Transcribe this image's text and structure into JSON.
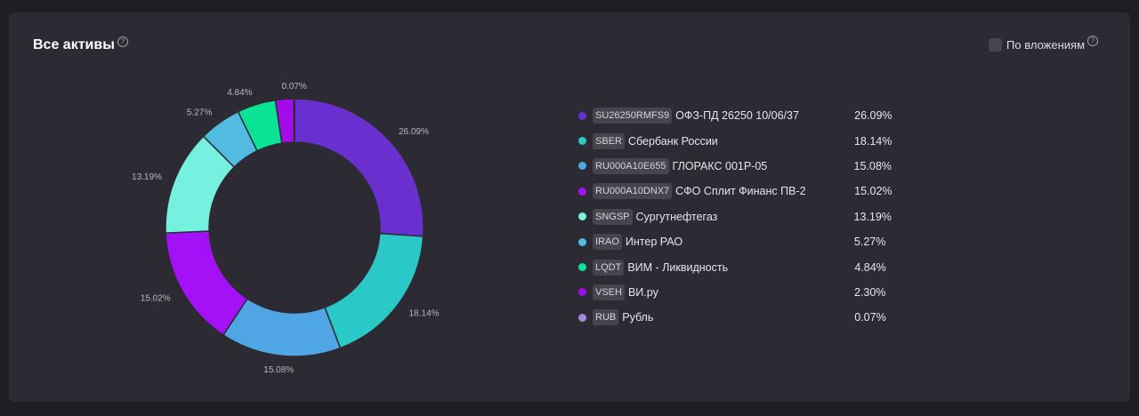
{
  "header": {
    "title": "Все активы",
    "help_glyph": "?",
    "toggle_label": "По вложениям"
  },
  "colors": {
    "background": "#1f1e25",
    "card": "#2c2b33",
    "chip": "#46454d"
  },
  "legend": [
    {
      "ticker": "SU26250RMFS9",
      "name": "ОФЗ-ПД 26250 10/06/37",
      "percent": "26.09%",
      "color": "#6a30cf"
    },
    {
      "ticker": "SBER",
      "name": "Сбербанк России",
      "percent": "18.14%",
      "color": "#2ac8c6"
    },
    {
      "ticker": "RU000A10E655",
      "name": "ГЛОРАКС 001P-05",
      "percent": "15.08%",
      "color": "#50a6e4"
    },
    {
      "ticker": "RU000A10DNX7",
      "name": "СФО Сплит Финанс ПВ-2",
      "percent": "15.02%",
      "color": "#a511f7"
    },
    {
      "ticker": "SNGSP",
      "name": "Сургутнефтегаз",
      "percent": "13.19%",
      "color": "#76f1df"
    },
    {
      "ticker": "IRAO",
      "name": "Интер РАО",
      "percent": "5.27%",
      "color": "#52bbe2"
    },
    {
      "ticker": "LQDT",
      "name": "ВИМ - Ликвидность",
      "percent": "4.84%",
      "color": "#0be497"
    },
    {
      "ticker": "VSEH",
      "name": "ВИ.ру",
      "percent": "2.30%",
      "color": "#a30be8"
    },
    {
      "ticker": "RUB",
      "name": "Рубль",
      "percent": "0.07%",
      "color": "#a586e2"
    }
  ],
  "chart_data": {
    "type": "pie",
    "donut": true,
    "title": "Все активы",
    "categories": [
      "ОФЗ-ПД 26250 10/06/37",
      "Сбербанк России",
      "ГЛОРАКС 001P-05",
      "СФО Сплит Финанс ПВ-2",
      "Сургутнефтегаз",
      "Интер РАО",
      "ВИМ - Ликвидность",
      "ВИ.ру",
      "Рубль"
    ],
    "values": [
      26.09,
      18.14,
      15.08,
      15.02,
      13.19,
      5.27,
      4.84,
      2.3,
      0.07
    ],
    "labels": [
      "26.09%",
      "18.14%",
      "15.08%",
      "15.02%",
      "13.19%",
      "5.27%",
      "4.84%",
      "",
      "0.07%"
    ],
    "colors": [
      "#6a30cf",
      "#2ac8c6",
      "#50a6e4",
      "#a511f7",
      "#76f1df",
      "#52bbe2",
      "#0be497",
      "#a30be8",
      "#a586e2"
    ],
    "legend_position": "right"
  }
}
